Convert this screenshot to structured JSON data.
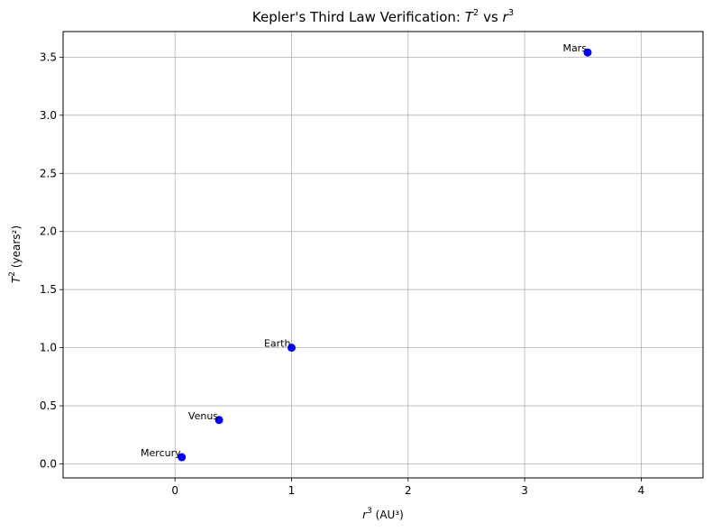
{
  "chart_data": {
    "type": "scatter",
    "title_prefix": "Kepler's Third Law Verification: ",
    "title_t": "T",
    "title_t_exp": "2",
    "title_vs": " vs ",
    "title_r": "r",
    "title_r_exp": "3",
    "xlabel_var": "r",
    "xlabel_exp": "3",
    "xlabel_unit": " (AU³)",
    "ylabel_var": "T",
    "ylabel_exp": "2",
    "ylabel_unit": " (years²)",
    "xlim": [
      -0.96,
      4.53
    ],
    "ylim": [
      -0.12,
      3.72
    ],
    "xticks": [
      0,
      1,
      2,
      3,
      4
    ],
    "xtick_labels": [
      "0",
      "1",
      "2",
      "3",
      "4"
    ],
    "yticks": [
      0.0,
      0.5,
      1.0,
      1.5,
      2.0,
      2.5,
      3.0,
      3.5
    ],
    "ytick_labels": [
      "0.0",
      "0.5",
      "1.0",
      "1.5",
      "2.0",
      "2.5",
      "3.0",
      "3.5"
    ],
    "grid": true,
    "marker_color": "#0000ff",
    "points": [
      {
        "label": "Mercury",
        "x": 0.058,
        "y": 0.058
      },
      {
        "label": "Venus",
        "x": 0.378,
        "y": 0.378
      },
      {
        "label": "Earth",
        "x": 1.0,
        "y": 1.0
      },
      {
        "label": "Mars",
        "x": 3.54,
        "y": 3.54
      }
    ]
  }
}
